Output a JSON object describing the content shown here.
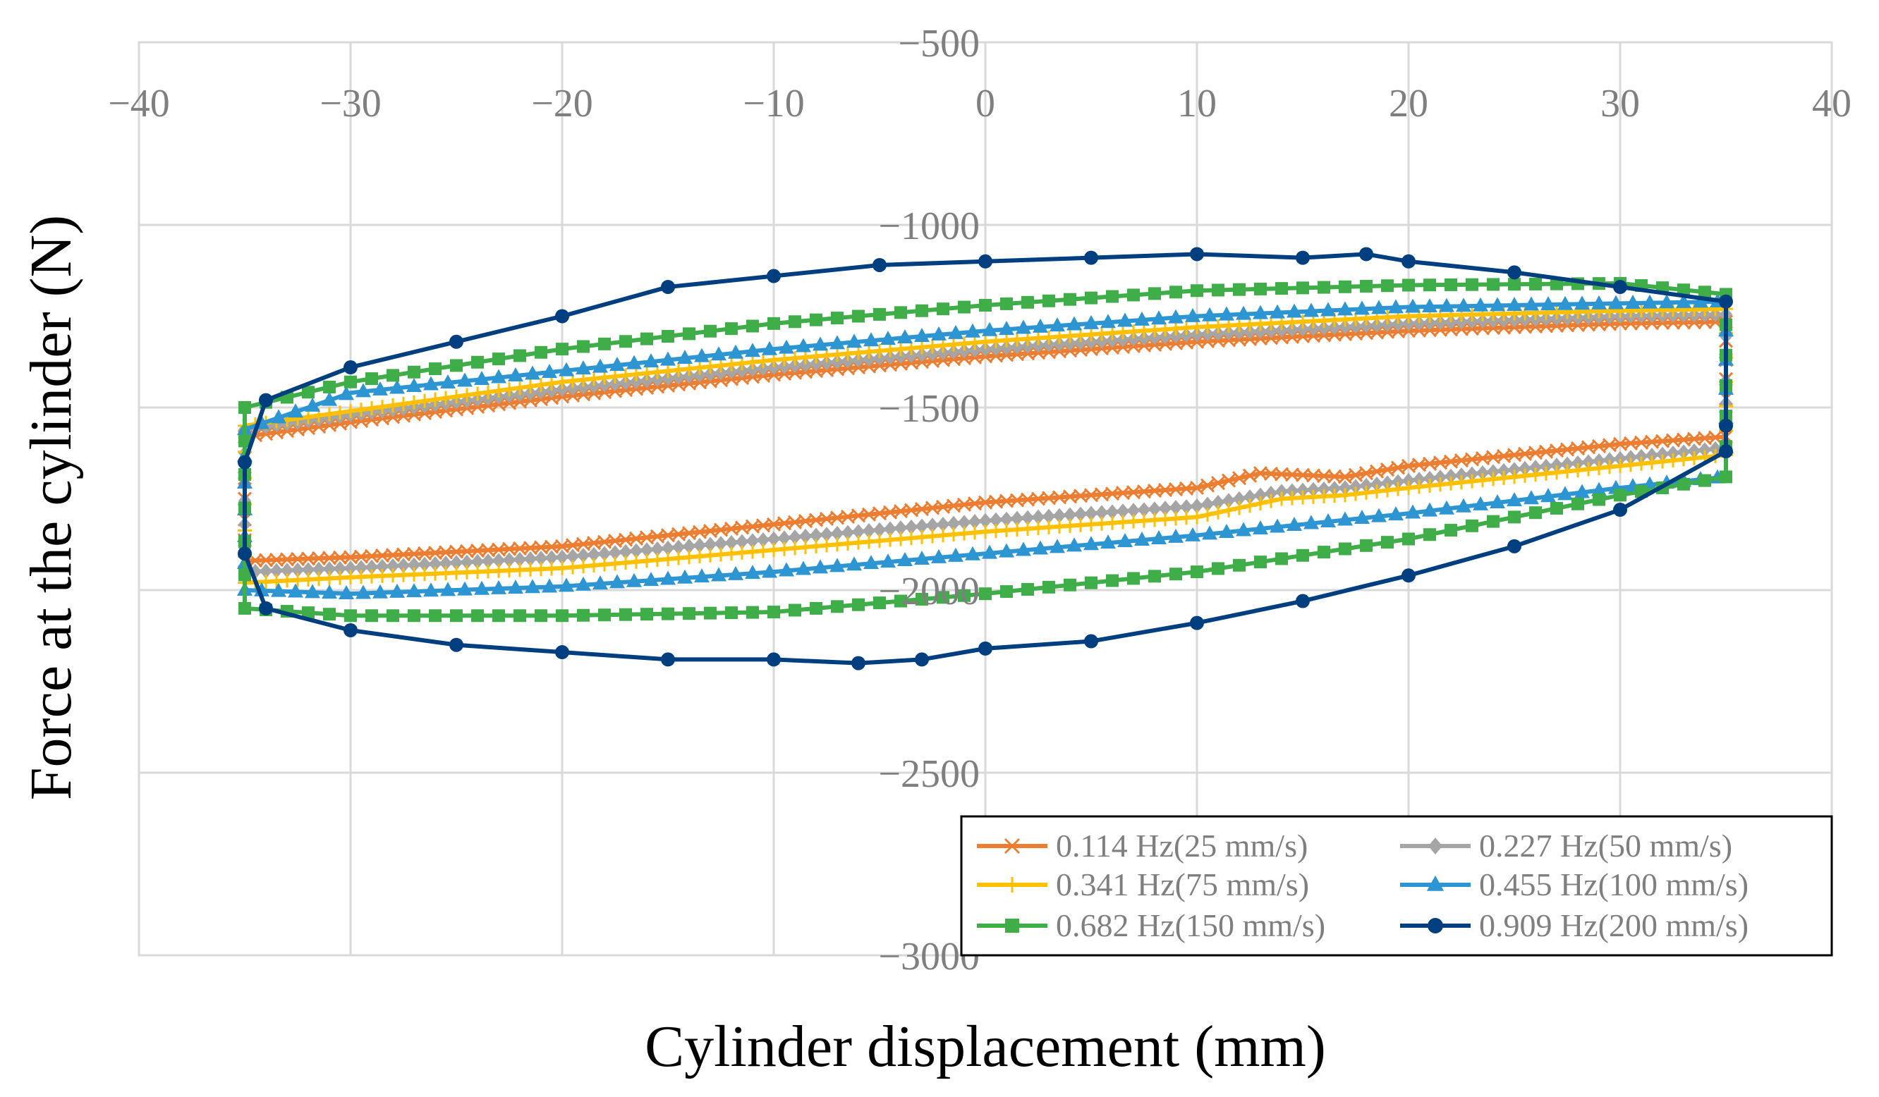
{
  "chart_data": {
    "type": "scatter",
    "xlabel": "Cylinder displacement (mm)",
    "ylabel": "Force at the cylinder (N)",
    "xlim": [
      -40,
      40
    ],
    "ylim": [
      -3000,
      -500
    ],
    "x_ticks": [
      -40,
      -30,
      -20,
      -10,
      0,
      10,
      20,
      30,
      40
    ],
    "x_tick_labels": [
      "−40",
      "−30",
      "−20",
      "−10",
      "0",
      "10",
      "20",
      "30",
      "40"
    ],
    "y_ticks": [
      -500,
      -1000,
      -1500,
      -2000,
      -2500,
      -3000
    ],
    "y_tick_labels": [
      "−500",
      "−1000",
      "−1500",
      "−2000",
      "−2500",
      "−3000"
    ],
    "grid": true,
    "legend_position": "bottom-right",
    "series": [
      {
        "name": "0.114 Hz(25 mm/s)",
        "color": "#ed7d31",
        "marker": "x",
        "upper": [
          [
            -35,
            -1580
          ],
          [
            -30,
            -1540
          ],
          [
            -20,
            -1470
          ],
          [
            -10,
            -1410
          ],
          [
            0,
            -1360
          ],
          [
            10,
            -1320
          ],
          [
            20,
            -1290
          ],
          [
            30,
            -1270
          ],
          [
            35,
            -1265
          ]
        ],
        "lower": [
          [
            -35,
            -1920
          ],
          [
            -30,
            -1910
          ],
          [
            -20,
            -1880
          ],
          [
            -10,
            -1820
          ],
          [
            0,
            -1760
          ],
          [
            10,
            -1720
          ],
          [
            13,
            -1680
          ],
          [
            17,
            -1690
          ],
          [
            20,
            -1660
          ],
          [
            30,
            -1600
          ],
          [
            35,
            -1580
          ]
        ]
      },
      {
        "name": "0.227 Hz(50 mm/s)",
        "color": "#a5a5a5",
        "marker": "diamond",
        "upper": [
          [
            -35,
            -1560
          ],
          [
            -30,
            -1520
          ],
          [
            -20,
            -1450
          ],
          [
            -10,
            -1390
          ],
          [
            0,
            -1340
          ],
          [
            10,
            -1300
          ],
          [
            20,
            -1270
          ],
          [
            30,
            -1250
          ],
          [
            35,
            -1245
          ]
        ],
        "lower": [
          [
            -35,
            -1950
          ],
          [
            -30,
            -1940
          ],
          [
            -20,
            -1910
          ],
          [
            -10,
            -1860
          ],
          [
            0,
            -1810
          ],
          [
            10,
            -1770
          ],
          [
            14,
            -1730
          ],
          [
            17,
            -1720
          ],
          [
            20,
            -1700
          ],
          [
            30,
            -1640
          ],
          [
            35,
            -1610
          ]
        ]
      },
      {
        "name": "0.341 Hz(75 mm/s)",
        "color": "#ffc000",
        "marker": "plus",
        "upper": [
          [
            -35,
            -1550
          ],
          [
            -30,
            -1510
          ],
          [
            -20,
            -1430
          ],
          [
            -10,
            -1370
          ],
          [
            0,
            -1320
          ],
          [
            10,
            -1280
          ],
          [
            20,
            -1250
          ],
          [
            30,
            -1235
          ],
          [
            35,
            -1230
          ]
        ],
        "lower": [
          [
            -35,
            -1980
          ],
          [
            -30,
            -1965
          ],
          [
            -20,
            -1940
          ],
          [
            -10,
            -1890
          ],
          [
            0,
            -1840
          ],
          [
            10,
            -1800
          ],
          [
            14,
            -1750
          ],
          [
            17,
            -1740
          ],
          [
            20,
            -1720
          ],
          [
            30,
            -1660
          ],
          [
            35,
            -1630
          ]
        ]
      },
      {
        "name": "0.455 Hz(100 mm/s)",
        "color": "#2e95d3",
        "marker": "triangle",
        "upper": [
          [
            -35,
            -1560
          ],
          [
            -30,
            -1460
          ],
          [
            -20,
            -1400
          ],
          [
            -10,
            -1340
          ],
          [
            0,
            -1290
          ],
          [
            10,
            -1250
          ],
          [
            20,
            -1225
          ],
          [
            30,
            -1215
          ],
          [
            35,
            -1210
          ]
        ],
        "lower": [
          [
            -35,
            -2000
          ],
          [
            -30,
            -2010
          ],
          [
            -20,
            -1990
          ],
          [
            -10,
            -1950
          ],
          [
            0,
            -1900
          ],
          [
            10,
            -1850
          ],
          [
            20,
            -1790
          ],
          [
            30,
            -1720
          ],
          [
            35,
            -1690
          ]
        ]
      },
      {
        "name": "0.682 Hz(150 mm/s)",
        "color": "#3fae49",
        "marker": "square",
        "upper": [
          [
            -35,
            -1500
          ],
          [
            -30,
            -1430
          ],
          [
            -20,
            -1340
          ],
          [
            -10,
            -1270
          ],
          [
            0,
            -1220
          ],
          [
            10,
            -1180
          ],
          [
            20,
            -1165
          ],
          [
            30,
            -1160
          ],
          [
            35,
            -1190
          ]
        ],
        "lower": [
          [
            -35,
            -2050
          ],
          [
            -30,
            -2070
          ],
          [
            -20,
            -2070
          ],
          [
            -10,
            -2060
          ],
          [
            0,
            -2010
          ],
          [
            10,
            -1950
          ],
          [
            20,
            -1860
          ],
          [
            30,
            -1740
          ],
          [
            35,
            -1690
          ]
        ]
      },
      {
        "name": "0.909 Hz(200 mm/s)",
        "color": "#003f7f",
        "marker": "circle",
        "upper": [
          [
            -35,
            -1650
          ],
          [
            -34,
            -1480
          ],
          [
            -30,
            -1390
          ],
          [
            -25,
            -1320
          ],
          [
            -20,
            -1250
          ],
          [
            -15,
            -1170
          ],
          [
            -10,
            -1140
          ],
          [
            -5,
            -1110
          ],
          [
            0,
            -1100
          ],
          [
            5,
            -1090
          ],
          [
            10,
            -1080
          ],
          [
            15,
            -1090
          ],
          [
            18,
            -1080
          ],
          [
            20,
            -1100
          ],
          [
            25,
            -1130
          ],
          [
            30,
            -1170
          ],
          [
            35,
            -1210
          ],
          [
            35,
            -1550
          ]
        ],
        "lower": [
          [
            -35,
            -1900
          ],
          [
            -34,
            -2050
          ],
          [
            -30,
            -2110
          ],
          [
            -25,
            -2150
          ],
          [
            -20,
            -2170
          ],
          [
            -15,
            -2190
          ],
          [
            -10,
            -2190
          ],
          [
            -6,
            -2200
          ],
          [
            -3,
            -2190
          ],
          [
            0,
            -2160
          ],
          [
            5,
            -2140
          ],
          [
            10,
            -2090
          ],
          [
            15,
            -2030
          ],
          [
            20,
            -1960
          ],
          [
            25,
            -1880
          ],
          [
            30,
            -1780
          ],
          [
            35,
            -1620
          ]
        ]
      }
    ]
  }
}
